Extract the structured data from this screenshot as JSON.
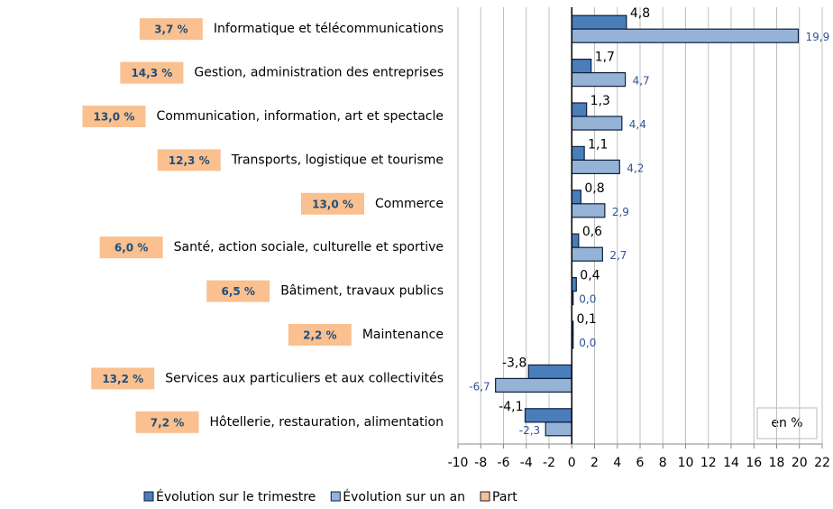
{
  "chart_data": {
    "type": "bar",
    "orientation": "horizontal",
    "categories": [
      "Informatique et télécommunications",
      "Gestion, administration des entreprises",
      "Communication, information, art et spectacle",
      "Transports, logistique et tourisme",
      "Commerce",
      "Santé, action sociale, culturelle et sportive",
      "Bâtiment, travaux publics",
      "Maintenance",
      "Services aux particuliers et aux collectivités",
      "Hôtellerie, restauration, alimentation"
    ],
    "series": [
      {
        "name": "Évolution sur le trimestre",
        "color": "#4a7ebb",
        "values": [
          4.8,
          1.7,
          1.3,
          1.1,
          0.8,
          0.6,
          0.4,
          0.1,
          -3.8,
          -4.1
        ],
        "value_labels": [
          "4,8",
          "1,7",
          "1,3",
          "1,1",
          "0,8",
          "0,6",
          "0,4",
          "0,1",
          "-3,8",
          "-4,1"
        ]
      },
      {
        "name": "Évolution sur un an",
        "color": "#95b3d7",
        "values": [
          19.9,
          4.7,
          4.4,
          4.2,
          2.9,
          2.7,
          0.0,
          0.0,
          -6.7,
          -2.3
        ],
        "value_labels": [
          "19,9",
          "4,7",
          "4,4",
          "4,2",
          "2,9",
          "2,7",
          "0,0",
          "0,0",
          "-6,7",
          "-2,3"
        ]
      },
      {
        "name": "Part",
        "color": "#fac090",
        "values": [
          3.7,
          14.3,
          13.0,
          12.3,
          13.0,
          6.0,
          6.5,
          2.2,
          13.2,
          7.2
        ],
        "value_labels": [
          "3,7 %",
          "14,3 %",
          "13,0 %",
          "12,3 %",
          "13,0 %",
          "6,0 %",
          "6,5 %",
          "2,2 %",
          "13,2 %",
          "7,2 %"
        ]
      }
    ],
    "xlim": [
      -10,
      22
    ],
    "xticks": [
      -10,
      -8,
      -6,
      -4,
      -2,
      0,
      2,
      4,
      6,
      8,
      10,
      12,
      14,
      16,
      18,
      20,
      22
    ],
    "grid": true,
    "annotation": "en %",
    "legend": "bottom"
  }
}
